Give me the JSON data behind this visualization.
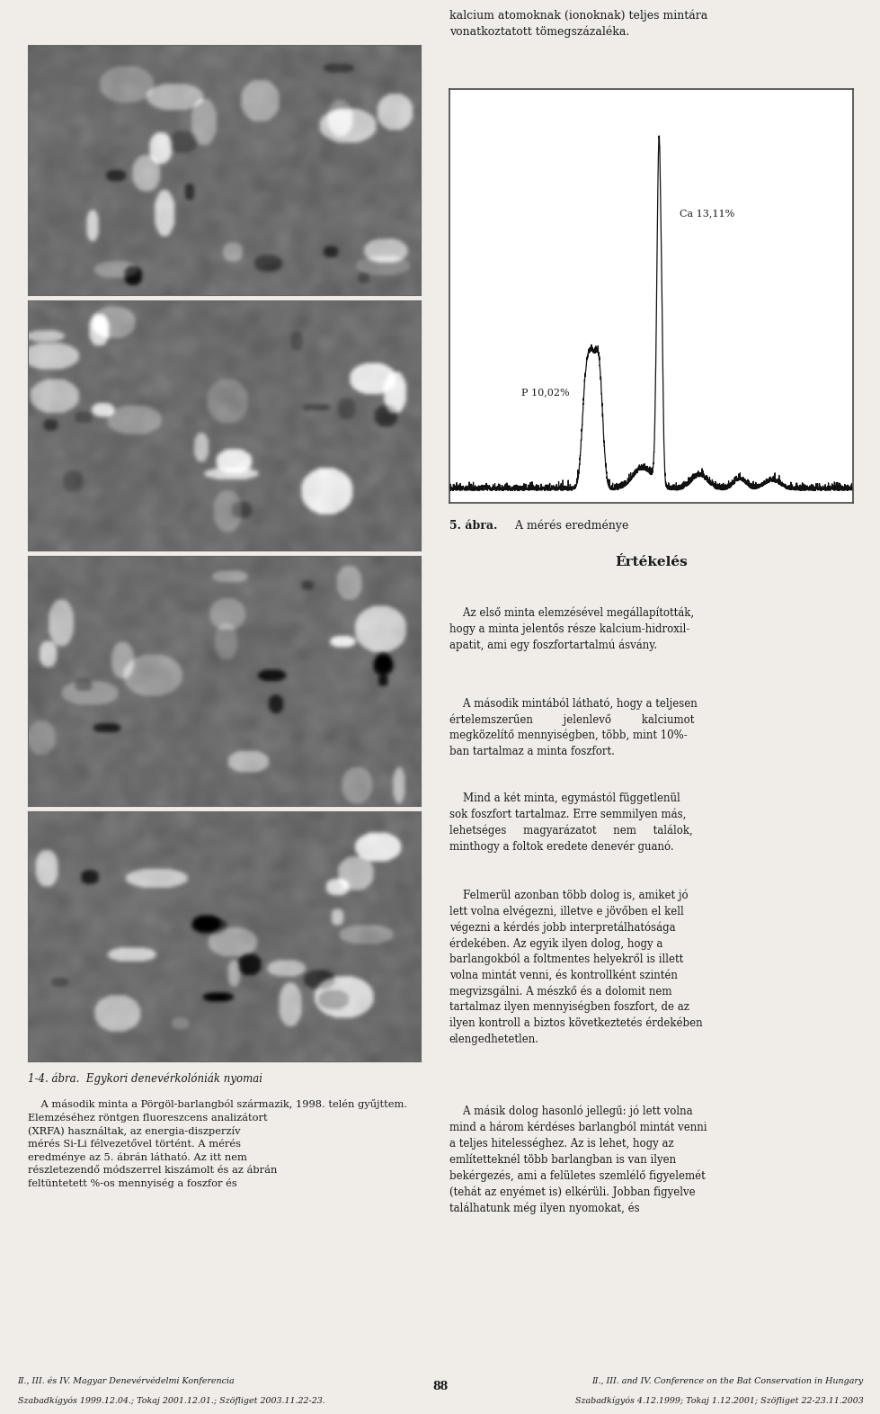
{
  "page_bg": "#f0ede8",
  "chart_bg": "#ffffff",
  "text_color": "#1a1a1a",
  "border_color": "#333333",
  "header_text_right": "kalcium atomoknak (ionoknak) teljes mintára\nvonatkoztatott tömegszázaléka.",
  "ca_label": "Ca 13,11%",
  "p_label": "P 10,02%",
  "figure_caption_bold": "5. ábra.",
  "figure_caption_normal": " A mérés eredménye",
  "section_title": "Értékelés",
  "paragraph1": "    Az első minta elemzésével megállapították,\nhogy a minta jelentős része kalcium-hidroxil-\napatit, ami egy foszfortartalmú ásvány.",
  "paragraph2": "    A második mintából látható, hogy a teljesen\nértelemszerűen         jelenlevő         kalciumot\nmegközelítő mennyiségben, több, mint 10%-\nban tartalmaz a minta foszfort.",
  "paragraph3": "    Mind a két minta, egymástól függetlenül\nsok foszfort tartalmaz. Erre semmilyen más,\nlehetséges     magyarázatot     nem     találok,\nminthogy a foltok eredete denevér guanó.",
  "paragraph4": "    Felmerül azonban több dolog is, amiket jó\nlett volna elvégezni, illetve e jövőben el kell\nvégezni a kérdés jobb interpretálhatósága\nérdekében. Az egyik ilyen dolog, hogy a\nbarlangokból a foltmentes helyekről is illett\nvolna mintát venni, és kontrollként szintén\nmegvizsgálni. A mészkő és a dolomit nem\ntartalmaz ilyen mennyiségben foszfort, de az\nilyen kontroll a biztos következtetés érdekében\nelengedhetetlen.",
  "paragraph5": "    A másik dolog hasonló jellegű: jó lett volna\nmind a három kérdéses barlangból mintát venni\na teljes hitelességhez. Az is lehet, hogy az\nemlítetteknél több barlangban is van ilyen\nbekérgezés, ami a felületes szemlélő figyelemét\n(tehát az enyémet is) elkérüli. Jobban figyelve\ntalálhatunk még ilyen nyomokat, és",
  "photo_caption": "1-4. ábra.  Egykori denevérkolóniák nyomai",
  "caption_text_line1": "    A második minta a Pörgöl-barlangból származik, 1998. telén gyűjttem.",
  "caption_text_line2": "Elemzéséhez röntgen fluoreszcens analizátort",
  "caption_text_line3": "(XRFA) használtak, az energia-diszperzív",
  "caption_text_line4": "mérés Si-Li félvezetővel történt. A mérés",
  "caption_text_line5": "eredménye az 5. ábrán látható. Az itt nem",
  "caption_text_line6": "részletezendő módszerrel kiszámolt és az ábrán",
  "caption_text_line7": "feltüntetett %-os mennyiség a foszfor és",
  "footer_left_line1": "II., III. és IV. Magyar Denevérvédelmi Konferencia",
  "footer_left_line2": "Szabadkígyós 1999.12.04.; Tokaj 2001.12.01.; Szöfliget 2003.11.22-23.",
  "footer_center": "88",
  "footer_right_line1": "II., III. and IV. Conference on the Bat Conservation in Hungary",
  "footer_right_line2": "Szabadkígyós 4.12.1999; Tokaj 1.12.2001; Szöfliget 22-23.11.2003"
}
